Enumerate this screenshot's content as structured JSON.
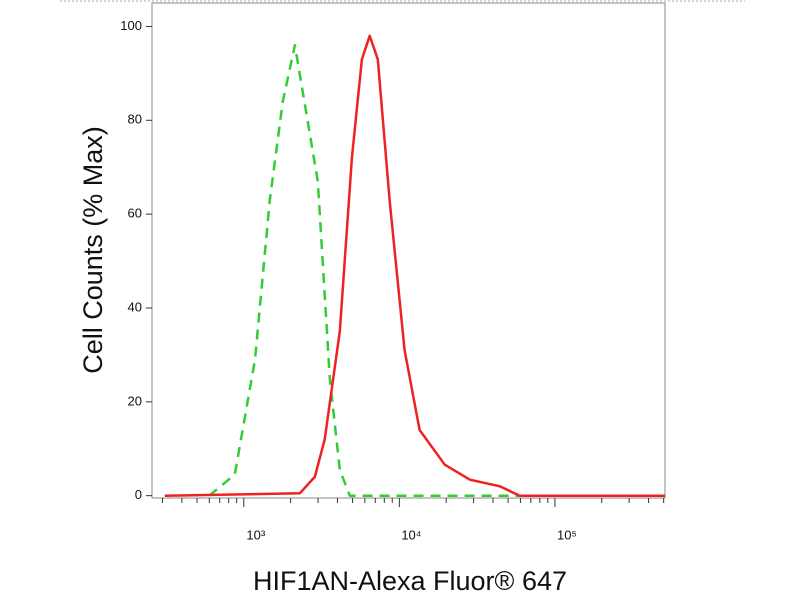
{
  "chart_data": {
    "type": "line",
    "xlabel": "HIF1AN-Alexa Fluor® 647",
    "ylabel": "Cell Counts (% Max)",
    "xscale": "log",
    "xlim": [
      257,
      510000
    ],
    "ylim": [
      -0.5,
      105
    ],
    "xticks": [
      {
        "value": 1000,
        "label": "10³"
      },
      {
        "value": 10000,
        "label": "10⁴"
      },
      {
        "value": 100000,
        "label": "10⁵"
      }
    ],
    "xminorticks": [
      300,
      400,
      500,
      600,
      700,
      800,
      900,
      2000,
      3000,
      4000,
      5000,
      6000,
      7000,
      8000,
      9000,
      20000,
      30000,
      40000,
      50000,
      60000,
      70000,
      80000,
      90000,
      200000,
      300000,
      400000,
      500000
    ],
    "yticks": [
      0,
      20,
      40,
      60,
      80,
      100
    ],
    "series": [
      {
        "color": "#33cc33",
        "dash": true,
        "x": [
          600,
          875,
          1180,
          1470,
          1780,
          2130,
          2990,
          3570,
          4140,
          4800,
          107000
        ],
        "values": [
          0,
          4.5,
          29,
          63,
          84,
          96,
          67,
          25,
          5.5,
          0,
          0
        ]
      },
      {
        "color": "#ee2222",
        "dash": false,
        "x": [
          310,
          2290,
          2860,
          3310,
          4140,
          4950,
          5740,
          6450,
          7270,
          8660,
          10800,
          13500,
          19600,
          28400,
          44200,
          59300,
          510000
        ],
        "values": [
          0,
          0.5,
          4,
          12,
          35,
          72,
          93,
          98,
          93,
          63,
          31,
          14,
          6.6,
          3.4,
          2,
          0,
          0
        ]
      }
    ]
  }
}
